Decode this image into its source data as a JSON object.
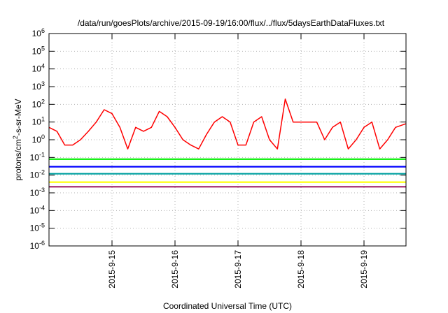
{
  "chart_data": {
    "type": "line",
    "title": "/data/run/goesPlots/archive/2015-09-19/16:00/flux/../flux/5daysEarthDataFluxes.txt",
    "xlabel": "Coordinated Universal Time (UTC)",
    "ylabel": {
      "base": "protons/cm",
      "sup": "2",
      "rest": "-s-sr-MeV"
    },
    "y_scale": "log",
    "ylim": [
      1e-06,
      1000000.0
    ],
    "y_ticks": [
      {
        "base": "10",
        "exp": "6",
        "value": 1000000.0
      },
      {
        "base": "10",
        "exp": "5",
        "value": 100000.0
      },
      {
        "base": "10",
        "exp": "4",
        "value": 10000.0
      },
      {
        "base": "10",
        "exp": "3",
        "value": 1000.0
      },
      {
        "base": "10",
        "exp": "2",
        "value": 100.0
      },
      {
        "base": "10",
        "exp": "1",
        "value": 10.0
      },
      {
        "base": "10",
        "exp": "0",
        "value": 1.0
      },
      {
        "base": "10",
        "exp": "-1",
        "value": 0.1
      },
      {
        "base": "10",
        "exp": "-2",
        "value": 0.01
      },
      {
        "base": "10",
        "exp": "-3",
        "value": 0.001
      },
      {
        "base": "10",
        "exp": "-4",
        "value": 0.0001
      },
      {
        "base": "10",
        "exp": "-5",
        "value": 1e-05
      },
      {
        "base": "10",
        "exp": "-6",
        "value": 1e-06
      }
    ],
    "xlim": [
      "2015-09-14 00:00",
      "2015-09-19 16:00"
    ],
    "x_ticks": [
      "2015-9-15",
      "2015-9-16",
      "2015-9-17",
      "2015-9-18",
      "2015-9-19"
    ],
    "grid": true,
    "series": [
      {
        "color": "#ff0000",
        "x": [
          "2015-09-14 00:00",
          "2015-09-14 03:00",
          "2015-09-14 06:00",
          "2015-09-14 09:00",
          "2015-09-14 12:00",
          "2015-09-14 15:00",
          "2015-09-14 18:00",
          "2015-09-14 21:00",
          "2015-09-15 00:00",
          "2015-09-15 03:00",
          "2015-09-15 06:00",
          "2015-09-15 09:00",
          "2015-09-15 12:00",
          "2015-09-15 15:00",
          "2015-09-15 18:00",
          "2015-09-15 21:00",
          "2015-09-16 00:00",
          "2015-09-16 03:00",
          "2015-09-16 06:00",
          "2015-09-16 09:00",
          "2015-09-16 12:00",
          "2015-09-16 15:00",
          "2015-09-16 18:00",
          "2015-09-16 21:00",
          "2015-09-17 00:00",
          "2015-09-17 03:00",
          "2015-09-17 06:00",
          "2015-09-17 09:00",
          "2015-09-17 12:00",
          "2015-09-17 15:00",
          "2015-09-17 18:00",
          "2015-09-17 21:00",
          "2015-09-18 00:00",
          "2015-09-18 03:00",
          "2015-09-18 06:00",
          "2015-09-18 09:00",
          "2015-09-18 12:00",
          "2015-09-18 15:00",
          "2015-09-18 18:00",
          "2015-09-18 21:00",
          "2015-09-19 00:00",
          "2015-09-19 03:00",
          "2015-09-19 06:00",
          "2015-09-19 09:00",
          "2015-09-19 12:00",
          "2015-09-19 16:00"
        ],
        "y": [
          5,
          3,
          0.5,
          0.5,
          1,
          3,
          10,
          50,
          30,
          5,
          0.3,
          5,
          3,
          5,
          40,
          20,
          5,
          1,
          0.5,
          0.3,
          2,
          10,
          20,
          10,
          0.5,
          0.5,
          10,
          20,
          1,
          0.3,
          200,
          10,
          10,
          10,
          10,
          1,
          5,
          10,
          0.3,
          1,
          5,
          10,
          0.3,
          1,
          5,
          8
        ]
      },
      {
        "color": "#00ee00",
        "x": [
          "2015-09-14 00:00",
          "2015-09-19 16:00"
        ],
        "y": [
          0.08,
          0.08
        ]
      },
      {
        "color": "#0000ff",
        "x": [
          "2015-09-14 00:00",
          "2015-09-19 16:00"
        ],
        "y": [
          0.03,
          0.03
        ]
      },
      {
        "color": "#00a0a0",
        "x": [
          "2015-09-14 00:00",
          "2015-09-19 16:00"
        ],
        "y": [
          0.012,
          0.012
        ]
      },
      {
        "color": "#ffff00",
        "x": [
          "2015-09-14 00:00",
          "2015-09-19 16:00"
        ],
        "y": [
          0.004,
          0.004
        ]
      },
      {
        "color": "#a0206a",
        "x": [
          "2015-09-14 00:00",
          "2015-09-19 16:00"
        ],
        "y": [
          0.0022,
          0.0022
        ]
      }
    ]
  }
}
